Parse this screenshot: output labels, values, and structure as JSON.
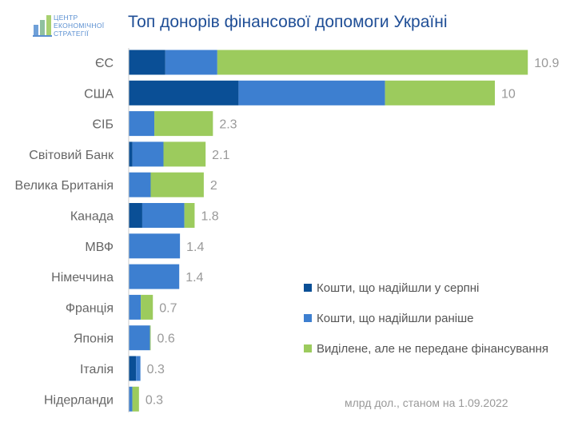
{
  "title": "Топ донорів фінансової допомоги Україні",
  "logo": {
    "lines": [
      "ЦЕНТР",
      "ЕКОНОМІЧНОЇ",
      "СТРАТЕГІЇ"
    ]
  },
  "footnote": "млрд дол., станом на 1.09.2022",
  "colors": {
    "august": "#0a4f96",
    "earlier": "#3d7fd0",
    "allocated": "#9ccb5d"
  },
  "chart_data": {
    "type": "bar",
    "orientation": "horizontal",
    "stacked": true,
    "title": "Топ донорів фінансової допомоги Україні",
    "unit": "млрд дол.",
    "categories": [
      "ЄС",
      "США",
      "ЄІБ",
      "Світовий Банк",
      "Велика Британія",
      "Канада",
      "МВФ",
      "Німеччина",
      "Франція",
      "Японія",
      "Італія",
      "Нідерланди"
    ],
    "series": [
      {
        "name": "Кошти, що надійшли у серпні",
        "values": [
          1.0,
          3.0,
          0,
          0.1,
          0,
          0.37,
          0,
          0,
          0,
          0,
          0.2,
          0
        ]
      },
      {
        "name": "Кошти, що надійшли раніше",
        "values": [
          1.42,
          4.0,
          0.7,
          0.85,
          0.6,
          1.15,
          1.4,
          1.38,
          0.33,
          0.58,
          0.12,
          0.1
        ]
      },
      {
        "name": "Виділене, але не передане фінансування",
        "values": [
          8.48,
          3.0,
          1.6,
          1.15,
          1.45,
          0.28,
          0,
          0,
          0.33,
          0.02,
          0,
          0.18
        ]
      }
    ],
    "totals_labels": [
      "10.9",
      "10",
      "2.3",
      "2.1",
      "2",
      "1.8",
      "1.4",
      "1.4",
      "0.7",
      "0.6",
      "0.3",
      "0.3"
    ],
    "xlim": [
      0,
      11.5
    ],
    "legend_position": "bottom-right",
    "grid": false
  }
}
